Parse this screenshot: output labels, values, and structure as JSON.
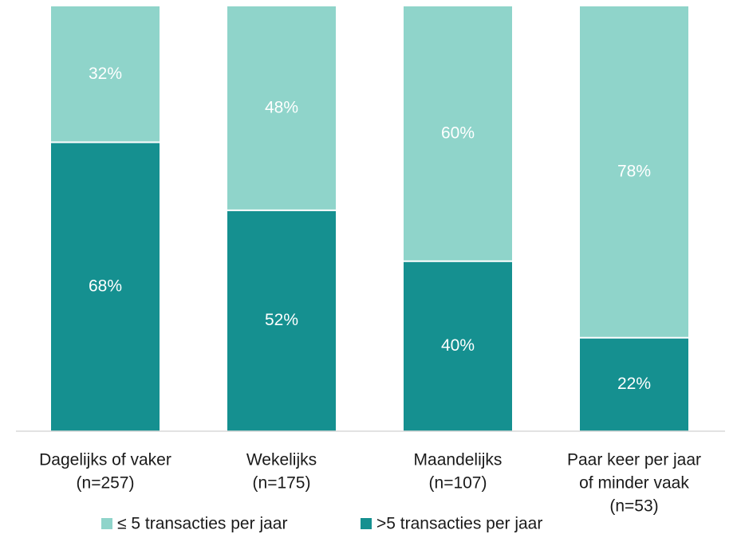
{
  "chart_data": {
    "type": "stacked_bar",
    "categories": [
      [
        "Dagelijks of vaker",
        "(n=257)"
      ],
      [
        "Wekelijks",
        "(n=175)"
      ],
      [
        "Maandelijks",
        "(n=107)"
      ],
      [
        "Paar keer per jaar",
        "of minder vaak",
        "(n=53)"
      ]
    ],
    "series": [
      {
        "name": "≤ 5 transacties per jaar",
        "color": "#8fd4ca",
        "values": [
          32,
          48,
          60,
          78
        ],
        "value_labels": [
          "32%",
          "48%",
          "60%",
          "78%"
        ]
      },
      {
        "name": ">5 transacties per jaar",
        "color": "#159090",
        "values": [
          68,
          52,
          40,
          22
        ],
        "value_labels": [
          "68%",
          "52%",
          "40%",
          "22%"
        ]
      }
    ],
    "ylim": [
      0,
      100
    ],
    "legend": "bottom"
  }
}
